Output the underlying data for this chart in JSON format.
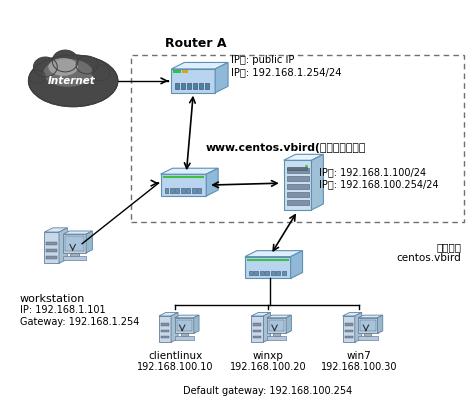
{
  "bg_color": "#ffffff",
  "router_a_label": "Router A",
  "router_a_ip": "IP外: public IP\nIP内: 192.168.1.254/24",
  "www_label": "www.centos.vbird(本书讲的主机）",
  "www_ip": "IP外: 192.168.1.100/24\nIP内: 192.168.100.254/24",
  "workstation_label": "workstation",
  "workstation_ip": "IP: 192.168.1.101\nGateway: 192.168.1.254",
  "isolated_label": "独立区域\ncentos.vbird",
  "client_label": "clientlinux",
  "client_ip": "192.168.100.10",
  "winxp_label": "winxp",
  "winxp_ip": "192.168.100.20",
  "win7_label": "win7",
  "win7_ip": "192.168.100.30",
  "default_gw": "Default gateway: 192.168.100.254",
  "internet_label": "Internet",
  "switch_face_color": "#b8d4ee",
  "switch_top_color": "#ddeeff",
  "switch_right_color": "#90b8d8",
  "switch_edge_color": "#6090b0",
  "server_face_color": "#c8dff0",
  "server_top_color": "#e8f4ff",
  "server_right_color": "#a0c0d8",
  "pc_body_color": "#c8d8e8",
  "pc_screen_color": "#d8e8f8",
  "pc_dark_color": "#8090a0"
}
